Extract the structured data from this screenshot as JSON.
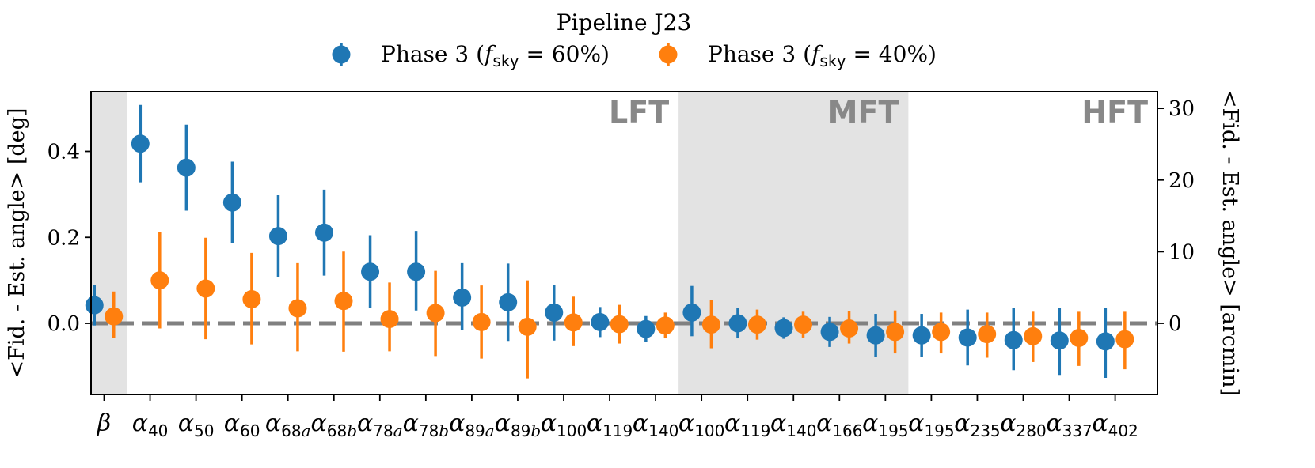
{
  "chart_data": {
    "type": "scatter",
    "title": "Pipeline J23",
    "ylabel_left": "<Fid. - Est. angle> [deg]",
    "ylabel_right": "<Fid. - Est. angle> [arcmin]",
    "ylim": [
      -0.13,
      0.52
    ],
    "yticks_left": [
      0.0,
      0.2,
      0.4
    ],
    "yticks_left_labels": [
      "0.0",
      "0.2",
      "0.4"
    ],
    "yticks_right": [
      0,
      10,
      20,
      30
    ],
    "yticks_right_labels": [
      "0",
      "10",
      "20",
      "30"
    ],
    "reference_line": 0.0,
    "legend_position": "top-center",
    "categories": [
      {
        "sym": "β",
        "sub": ""
      },
      {
        "sym": "α",
        "sub": "40"
      },
      {
        "sym": "α",
        "sub": "50"
      },
      {
        "sym": "α",
        "sub": "60"
      },
      {
        "sym": "α",
        "sub": "68a"
      },
      {
        "sym": "α",
        "sub": "68b"
      },
      {
        "sym": "α",
        "sub": "78a"
      },
      {
        "sym": "α",
        "sub": "78b"
      },
      {
        "sym": "α",
        "sub": "89a"
      },
      {
        "sym": "α",
        "sub": "89b"
      },
      {
        "sym": "α",
        "sub": "100"
      },
      {
        "sym": "α",
        "sub": "119"
      },
      {
        "sym": "α",
        "sub": "140"
      },
      {
        "sym": "α",
        "sub": "100"
      },
      {
        "sym": "α",
        "sub": "119"
      },
      {
        "sym": "α",
        "sub": "140"
      },
      {
        "sym": "α",
        "sub": "166"
      },
      {
        "sym": "α",
        "sub": "195"
      },
      {
        "sym": "α",
        "sub": "195"
      },
      {
        "sym": "α",
        "sub": "235"
      },
      {
        "sym": "α",
        "sub": "280"
      },
      {
        "sym": "α",
        "sub": "337"
      },
      {
        "sym": "α",
        "sub": "402"
      }
    ],
    "bands": [
      {
        "label": "",
        "start": 0,
        "end": 0,
        "shaded": true
      },
      {
        "label": "LFT",
        "start": 1,
        "end": 12,
        "shaded": false
      },
      {
        "label": "MFT",
        "start": 13,
        "end": 17,
        "shaded": true
      },
      {
        "label": "HFT",
        "start": 18,
        "end": 22,
        "shaded": false
      }
    ],
    "series": [
      {
        "name_prefix": "Phase 3 (",
        "name_var": "f",
        "name_var_sub": "sky",
        "name_suffix": " = 60%)",
        "color": "#1f77b4",
        "values": [
          0.042,
          0.418,
          0.362,
          0.281,
          0.203,
          0.211,
          0.12,
          0.12,
          0.06,
          0.049,
          0.025,
          0.003,
          -0.013,
          0.025,
          0.0,
          -0.011,
          -0.02,
          -0.028,
          -0.028,
          -0.033,
          -0.039,
          -0.04,
          -0.042
        ],
        "err_low": [
          0.047,
          0.09,
          0.1,
          0.095,
          0.095,
          0.1,
          0.085,
          0.09,
          0.075,
          0.09,
          0.065,
          0.035,
          0.03,
          0.055,
          0.035,
          0.025,
          0.035,
          0.05,
          0.05,
          0.065,
          0.07,
          0.08,
          0.085
        ],
        "err_high": [
          0.047,
          0.09,
          0.1,
          0.095,
          0.095,
          0.1,
          0.085,
          0.095,
          0.08,
          0.09,
          0.065,
          0.035,
          0.03,
          0.062,
          0.035,
          0.025,
          0.035,
          0.05,
          0.05,
          0.065,
          0.075,
          0.075,
          0.078
        ]
      },
      {
        "name_prefix": "Phase 3 (",
        "name_var": "f",
        "name_var_sub": "sky",
        "name_suffix": " = 40%)",
        "color": "#ff7f0e",
        "values": [
          0.016,
          0.1,
          0.081,
          0.056,
          0.035,
          0.052,
          0.01,
          0.024,
          0.003,
          -0.008,
          0.002,
          -0.002,
          -0.005,
          -0.003,
          -0.003,
          -0.003,
          -0.012,
          -0.02,
          -0.02,
          -0.025,
          -0.03,
          -0.034,
          -0.037
        ],
        "err_low": [
          0.05,
          0.112,
          0.118,
          0.105,
          0.1,
          0.118,
          0.075,
          0.1,
          0.085,
          0.12,
          0.055,
          0.045,
          0.03,
          0.055,
          0.035,
          0.03,
          0.035,
          0.05,
          0.05,
          0.055,
          0.06,
          0.065,
          0.07
        ],
        "err_high": [
          0.058,
          0.112,
          0.118,
          0.108,
          0.105,
          0.115,
          0.085,
          0.098,
          0.085,
          0.108,
          0.06,
          0.045,
          0.03,
          0.058,
          0.035,
          0.03,
          0.04,
          0.05,
          0.045,
          0.05,
          0.057,
          0.061,
          0.064
        ]
      }
    ]
  }
}
